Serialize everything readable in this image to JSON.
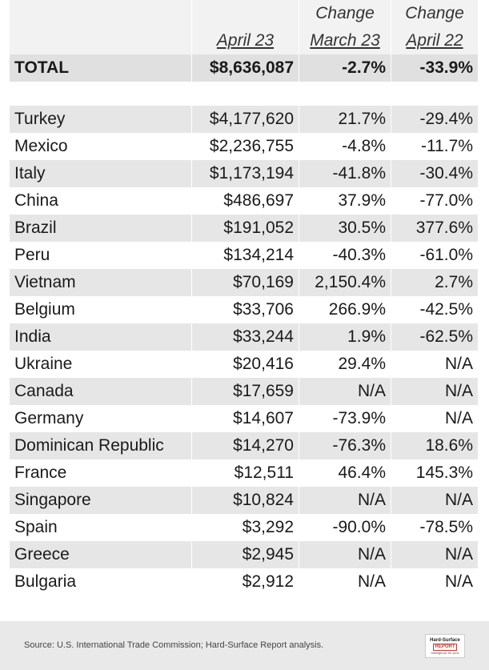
{
  "header": {
    "change1": "Change",
    "change2": "Change",
    "col_value": "April 23",
    "col_mar": "March 23",
    "col_apr": "April 22"
  },
  "total": {
    "label": "TOTAL",
    "value": "$8,636,087",
    "mar": "-2.7%",
    "apr": "-33.9%"
  },
  "rows": [
    {
      "country": "Turkey",
      "value": "$4,177,620",
      "mar": "21.7%",
      "apr": "-29.4%"
    },
    {
      "country": "Mexico",
      "value": "$2,236,755",
      "mar": "-4.8%",
      "apr": "-11.7%"
    },
    {
      "country": "Italy",
      "value": "$1,173,194",
      "mar": "-41.8%",
      "apr": "-30.4%"
    },
    {
      "country": "China",
      "value": "$486,697",
      "mar": "37.9%",
      "apr": "-77.0%"
    },
    {
      "country": "Brazil",
      "value": "$191,052",
      "mar": "30.5%",
      "apr": "377.6%"
    },
    {
      "country": "Peru",
      "value": "$134,214",
      "mar": "-40.3%",
      "apr": "-61.0%"
    },
    {
      "country": "Vietnam",
      "value": "$70,169",
      "mar": "2,150.4%",
      "apr": "2.7%"
    },
    {
      "country": "Belgium",
      "value": "$33,706",
      "mar": "266.9%",
      "apr": "-42.5%"
    },
    {
      "country": "India",
      "value": "$33,244",
      "mar": "1.9%",
      "apr": "-62.5%"
    },
    {
      "country": "Ukraine",
      "value": "$20,416",
      "mar": "29.4%",
      "apr": "N/A"
    },
    {
      "country": "Canada",
      "value": "$17,659",
      "mar": "N/A",
      "apr": "N/A"
    },
    {
      "country": "Germany",
      "value": "$14,607",
      "mar": "-73.9%",
      "apr": "N/A"
    },
    {
      "country": "Dominican Republic",
      "value": "$14,270",
      "mar": "-76.3%",
      "apr": "18.6%"
    },
    {
      "country": "France",
      "value": "$12,511",
      "mar": "46.4%",
      "apr": "145.3%"
    },
    {
      "country": "Singapore",
      "value": "$10,824",
      "mar": "N/A",
      "apr": "N/A"
    },
    {
      "country": "Spain",
      "value": "$3,292",
      "mar": "-90.0%",
      "apr": "-78.5%"
    },
    {
      "country": "Greece",
      "value": "$2,945",
      "mar": "N/A",
      "apr": "N/A"
    },
    {
      "country": "Bulgaria",
      "value": "$2,912",
      "mar": "N/A",
      "apr": "N/A"
    }
  ],
  "footer": {
    "source": "Source: U.S. International Trade Commission; Hard-Surface Report analysis.",
    "logo_line1": "Hard-Surface",
    "logo_line2": "REPORT",
    "logo_line3": "Intelligence for pros"
  }
}
